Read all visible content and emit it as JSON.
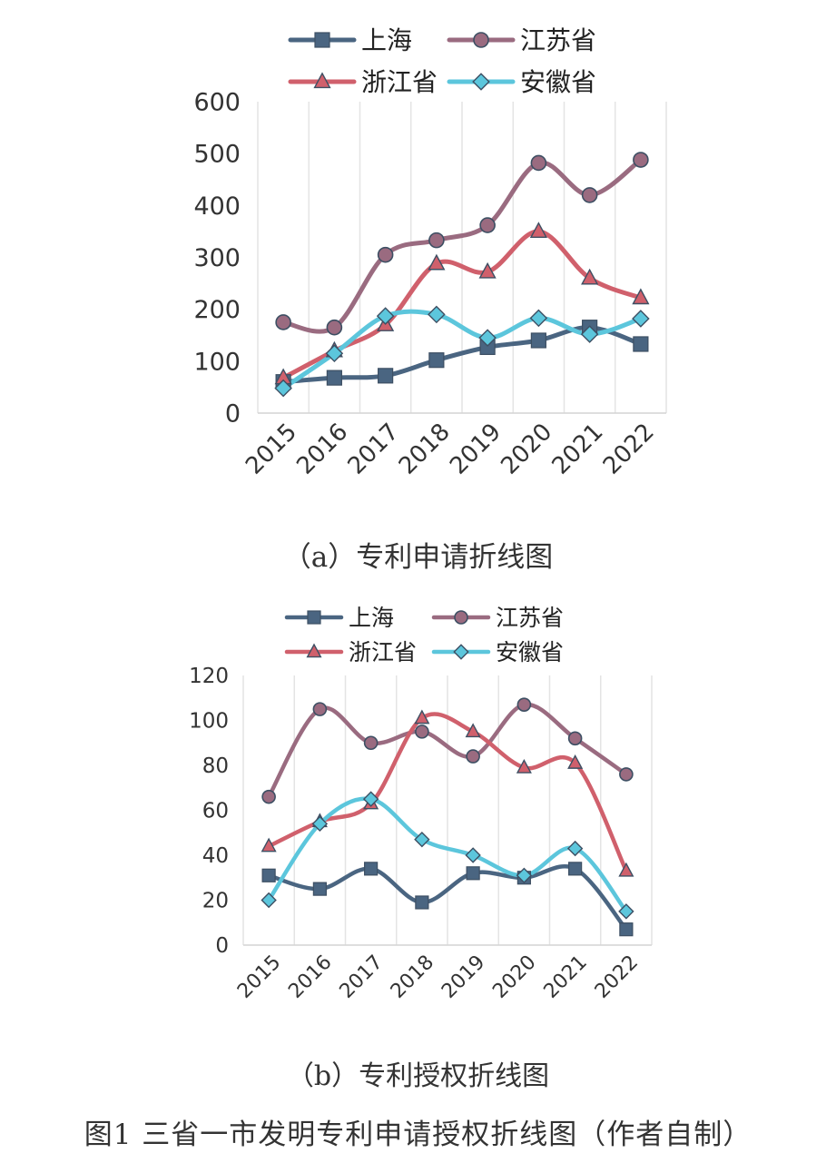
{
  "chart_data": [
    {
      "type": "line",
      "categories": [
        "2015",
        "2016",
        "2017",
        "2018",
        "2019",
        "2020",
        "2021",
        "2022"
      ],
      "ylim": [
        0,
        600
      ],
      "yticks": [
        0,
        100,
        200,
        300,
        400,
        500,
        600
      ],
      "grid": "vertical",
      "legend": "top",
      "series": [
        {
          "name": "上海",
          "values": [
            60,
            68,
            72,
            102,
            127,
            140,
            165,
            133
          ],
          "color": "#4a6581",
          "marker": "square"
        },
        {
          "name": "江苏省",
          "values": [
            175,
            165,
            305,
            333,
            362,
            482,
            420,
            488
          ],
          "color": "#9a6b80",
          "marker": "circle"
        },
        {
          "name": "浙江省",
          "values": [
            68,
            120,
            170,
            288,
            272,
            350,
            260,
            222
          ],
          "color": "#d0606c",
          "marker": "triangle"
        },
        {
          "name": "安徽省",
          "values": [
            48,
            115,
            187,
            190,
            145,
            183,
            152,
            182
          ],
          "color": "#5cc6dc",
          "marker": "diamond"
        }
      ]
    },
    {
      "type": "line",
      "categories": [
        "2015",
        "2016",
        "2017",
        "2018",
        "2019",
        "2020",
        "2021",
        "2022"
      ],
      "ylim": [
        0,
        120
      ],
      "yticks": [
        0,
        20,
        40,
        60,
        80,
        100,
        120
      ],
      "grid": "vertical",
      "legend": "top",
      "series": [
        {
          "name": "上海",
          "values": [
            31,
            25,
            34,
            19,
            32,
            30,
            34,
            7
          ],
          "color": "#4a6581",
          "marker": "square"
        },
        {
          "name": "江苏省",
          "values": [
            66,
            105,
            90,
            95,
            84,
            107,
            92,
            76
          ],
          "color": "#9a6b80",
          "marker": "circle"
        },
        {
          "name": "浙江省",
          "values": [
            44,
            55,
            63,
            101,
            95,
            79,
            81,
            33
          ],
          "color": "#d0606c",
          "marker": "triangle"
        },
        {
          "name": "安徽省",
          "values": [
            20,
            54,
            65,
            47,
            40,
            31,
            43,
            15
          ],
          "color": "#5cc6dc",
          "marker": "diamond"
        }
      ]
    }
  ],
  "captions": {
    "a": "（a）专利申请折线图",
    "b": "（b）专利授权折线图",
    "figure": "图1 三省一市发明专利申请授权折线图（作者自制）"
  }
}
